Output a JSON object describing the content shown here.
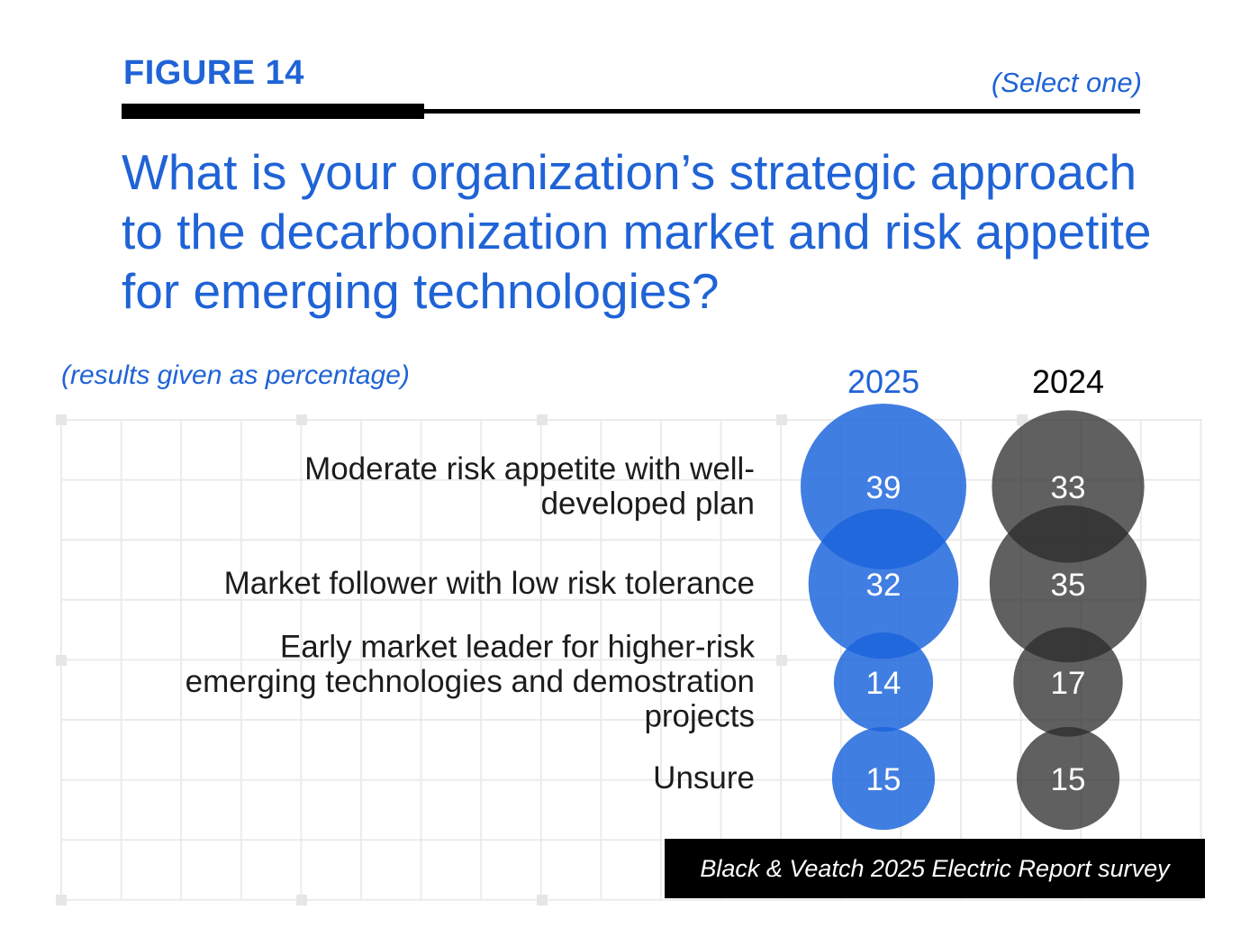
{
  "header": {
    "figure_label": "FIGURE 14",
    "select_note": "(Select one)",
    "question": "What is your organization’s strategic approach to the decarbonization market and risk appetite for emerging technologies?",
    "results_note": "(results given as percentage)"
  },
  "source": "Black & Veatch 2025 Electric Report survey",
  "colors": {
    "accent_blue": "#1f63d6",
    "bubble_2025": "#1a64dc",
    "bubble_2024": "#2b2b2b",
    "grid": "#ebebeb",
    "text": "#1c1c1c"
  },
  "chart_data": {
    "type": "bubble",
    "categories": [
      [
        "Moderate risk appetite with well-",
        "developed plan"
      ],
      [
        "Market follower with low risk tolerance"
      ],
      [
        "Early market leader for higher-risk",
        "emerging technologies and demostration",
        "projects"
      ],
      [
        "Unsure"
      ]
    ],
    "series": [
      {
        "name": "2025",
        "values": [
          39,
          32,
          14,
          15
        ]
      },
      {
        "name": "2024",
        "values": [
          33,
          35,
          17,
          15
        ]
      }
    ],
    "unit": "percent"
  }
}
